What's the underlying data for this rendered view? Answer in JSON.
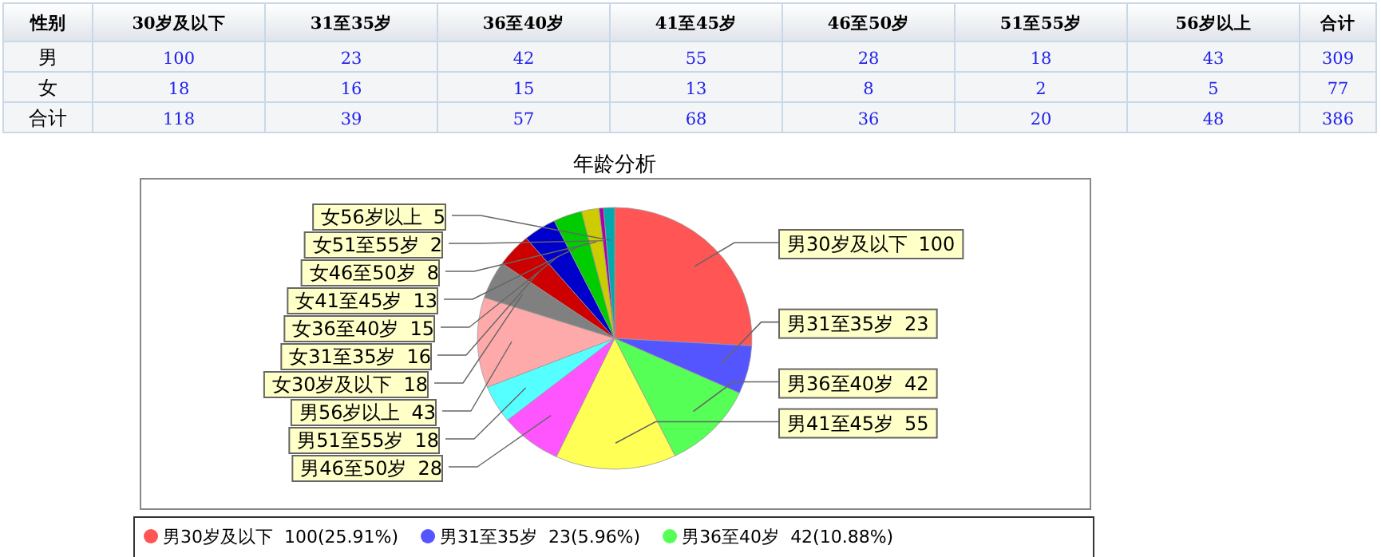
{
  "chart_data": [
    {
      "type": "heatmap",
      "ylabel": "性别",
      "categories": [
        "30岁及以下",
        "31至35岁",
        "36至40岁",
        "41至45岁",
        "46至50岁",
        "51至55岁",
        "56岁以上",
        "合计"
      ],
      "y_categories": [
        "男",
        "女",
        "合计"
      ],
      "data_labels": true,
      "cells": [
        [
          100,
          23,
          42,
          55,
          28,
          18,
          43,
          309
        ],
        [
          18,
          16,
          15,
          13,
          8,
          2,
          5,
          77
        ],
        [
          118,
          39,
          57,
          68,
          36,
          20,
          48,
          386
        ]
      ]
    },
    {
      "type": "pie",
      "title": "年龄分析",
      "categories": [
        "男30岁及以下",
        "男31至35岁",
        "男36至40岁",
        "男41至45岁",
        "男46至50岁",
        "男51至55岁",
        "男56岁以上",
        "女30岁及以下",
        "女31至35岁",
        "女36至40岁",
        "女41至45岁",
        "女46至50岁",
        "女51至55岁",
        "女56岁以上"
      ],
      "values": [
        100,
        23,
        42,
        55,
        28,
        18,
        43,
        18,
        16,
        15,
        13,
        8,
        2,
        5
      ],
      "colors": [
        "#ff5555",
        "#5555ff",
        "#55ff55",
        "#ffff55",
        "#ff55ff",
        "#55ffff",
        "#ffaaaa",
        "#808080",
        "#cc0000",
        "#0000cc",
        "#00cc00",
        "#cccc00",
        "#aa00aa",
        "#00aaaa"
      ],
      "data_labels": true,
      "annotations": [
        "100(25.91%)",
        "23(5.96%)",
        "42(10.88%)"
      ],
      "legend": "bottom"
    }
  ]
}
